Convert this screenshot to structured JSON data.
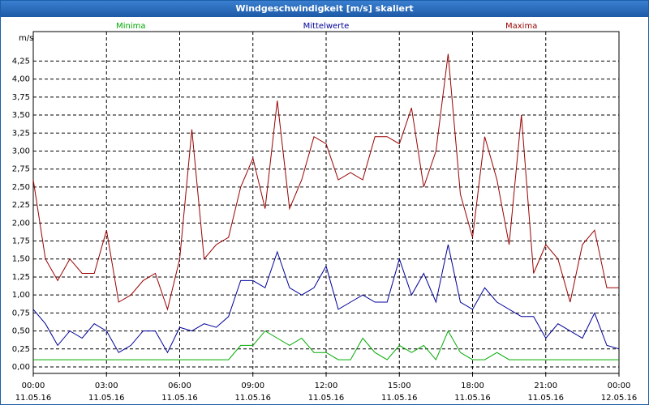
{
  "window_title": "Windgeschwindigkeit [m/s] skaliert",
  "chart_data": {
    "type": "line",
    "y_unit": "m/s",
    "grid": true,
    "x": [
      0,
      0.5,
      1,
      1.5,
      2,
      2.5,
      3,
      3.5,
      4,
      4.5,
      5,
      5.5,
      6,
      6.5,
      7,
      7.5,
      8,
      8.5,
      9,
      9.5,
      10,
      10.5,
      11,
      11.5,
      12,
      12.5,
      13,
      13.5,
      14,
      14.5,
      15,
      15.5,
      16,
      16.5,
      17,
      17.5,
      18,
      18.5,
      19,
      19.5,
      20,
      20.5,
      21,
      21.5,
      22,
      22.5,
      23,
      23.5,
      24
    ],
    "series": [
      {
        "name": "Minima",
        "color": "#00aa00",
        "values": [
          0.1,
          0.1,
          0.1,
          0.1,
          0.1,
          0.1,
          0.1,
          0.1,
          0.1,
          0.1,
          0.1,
          0.1,
          0.1,
          0.1,
          0.1,
          0.1,
          0.1,
          0.3,
          0.3,
          0.5,
          0.4,
          0.3,
          0.4,
          0.2,
          0.2,
          0.1,
          0.1,
          0.4,
          0.2,
          0.1,
          0.3,
          0.2,
          0.3,
          0.1,
          0.5,
          0.2,
          0.1,
          0.1,
          0.2,
          0.1,
          0.1,
          0.1,
          0.1,
          0.1,
          0.1,
          0.1,
          0.1,
          0.1,
          0.1
        ]
      },
      {
        "name": "Mittelwerte",
        "color": "#000099",
        "values": [
          0.8,
          0.6,
          0.3,
          0.5,
          0.4,
          0.6,
          0.5,
          0.2,
          0.3,
          0.5,
          0.5,
          0.2,
          0.55,
          0.5,
          0.6,
          0.55,
          0.7,
          1.2,
          1.2,
          1.1,
          1.6,
          1.1,
          1.0,
          1.1,
          1.4,
          0.8,
          0.9,
          1.0,
          0.9,
          0.9,
          1.5,
          1.0,
          1.3,
          0.9,
          1.7,
          0.9,
          0.8,
          1.1,
          0.9,
          0.8,
          0.7,
          0.7,
          0.4,
          0.6,
          0.5,
          0.4,
          0.75,
          0.3,
          0.25
        ]
      },
      {
        "name": "Maxima",
        "color": "#990000",
        "values": [
          2.6,
          1.5,
          1.2,
          1.5,
          1.3,
          1.3,
          1.9,
          0.9,
          1.0,
          1.2,
          1.3,
          0.8,
          1.5,
          3.3,
          1.5,
          1.7,
          1.8,
          2.5,
          2.9,
          2.2,
          3.7,
          2.2,
          2.6,
          3.2,
          3.1,
          2.6,
          2.7,
          2.6,
          3.2,
          3.2,
          3.1,
          3.6,
          2.5,
          3.0,
          4.35,
          2.4,
          1.8,
          3.2,
          2.6,
          1.7,
          3.5,
          1.3,
          1.7,
          1.5,
          0.9,
          1.7,
          1.9,
          1.1,
          1.1
        ]
      }
    ],
    "xlim": [
      0,
      24
    ],
    "xticks": [
      {
        "value": 0,
        "label": "00:00",
        "sublabel": "11.05.16"
      },
      {
        "value": 3,
        "label": "03:00",
        "sublabel": "11.05.16"
      },
      {
        "value": 6,
        "label": "06:00",
        "sublabel": "11.05.16"
      },
      {
        "value": 9,
        "label": "09:00",
        "sublabel": "11.05.16"
      },
      {
        "value": 12,
        "label": "12:00",
        "sublabel": "11.05.16"
      },
      {
        "value": 15,
        "label": "15:00",
        "sublabel": "11.05.16"
      },
      {
        "value": 18,
        "label": "18:00",
        "sublabel": "11.05.16"
      },
      {
        "value": 21,
        "label": "21:00",
        "sublabel": "11.05.16"
      },
      {
        "value": 24,
        "label": "00:00",
        "sublabel": "12.05.16"
      }
    ],
    "ylim": [
      -0.09,
      4.66
    ],
    "yticks": [
      {
        "value": 0,
        "label": "0,00"
      },
      {
        "value": 0.25,
        "label": "0,25"
      },
      {
        "value": 0.5,
        "label": "0,50"
      },
      {
        "value": 0.75,
        "label": "0,75"
      },
      {
        "value": 1,
        "label": "1,00"
      },
      {
        "value": 1.25,
        "label": "1,25"
      },
      {
        "value": 1.5,
        "label": "1,50"
      },
      {
        "value": 1.75,
        "label": "1,75"
      },
      {
        "value": 2,
        "label": "2,00"
      },
      {
        "value": 2.25,
        "label": "2,25"
      },
      {
        "value": 2.5,
        "label": "2,50"
      },
      {
        "value": 2.75,
        "label": "2,75"
      },
      {
        "value": 3,
        "label": "3,00"
      },
      {
        "value": 3.25,
        "label": "3,25"
      },
      {
        "value": 3.5,
        "label": "3,50"
      },
      {
        "value": 3.75,
        "label": "3,75"
      },
      {
        "value": 4,
        "label": "4,00"
      },
      {
        "value": 4.25,
        "label": "4,25"
      }
    ]
  }
}
